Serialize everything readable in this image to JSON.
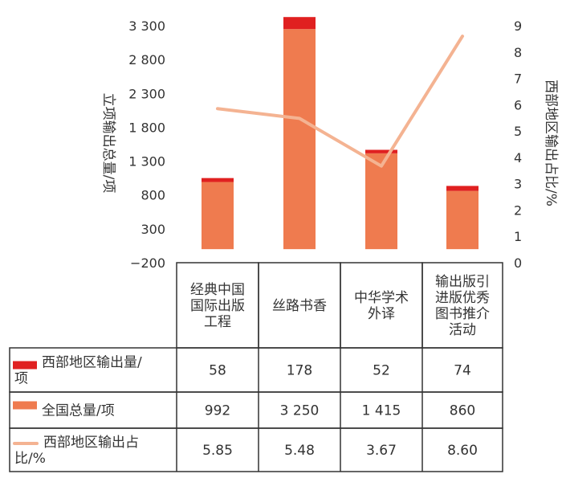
{
  "chart_data": {
    "type": "bar+line",
    "title": "",
    "categories": [
      [
        "经典中国",
        "国际出版",
        "工程"
      ],
      [
        "丝路书香"
      ],
      [
        "中华学术",
        "外译"
      ],
      [
        "输出版引",
        "进版优秀",
        "图书推介",
        "活动"
      ]
    ],
    "y_left": {
      "label": "立项输出总量/项",
      "ticks": [
        "3 300",
        "2 800",
        "2 300",
        "1 800",
        "1 300",
        "800",
        "300",
        "−200"
      ],
      "range": [
        -200,
        3300
      ]
    },
    "y_right": {
      "label": "西部地区输出占比/%",
      "ticks": [
        "9",
        "8",
        "7",
        "6",
        "5",
        "4",
        "3",
        "2",
        "1",
        "0"
      ],
      "range": [
        0,
        9
      ]
    },
    "series": [
      {
        "name": "西部地区输出量/项",
        "type": "bar-stack-top",
        "color": "#e02020",
        "values": [
          58,
          178,
          52,
          74
        ],
        "display": [
          "58",
          "178",
          "52",
          "74"
        ]
      },
      {
        "name": "全国总量/项",
        "type": "bar",
        "color": "#ef7b4f",
        "values": [
          992,
          3250,
          1415,
          860
        ],
        "display": [
          "992",
          "3 250",
          "1 415",
          "860"
        ]
      },
      {
        "name": "西部地区输出占比/%",
        "type": "line",
        "axis": "right",
        "color": "#f4b392",
        "values": [
          5.85,
          5.48,
          3.67,
          8.6
        ],
        "display": [
          "5.85",
          "5.48",
          "3.67",
          "8.60"
        ]
      }
    ],
    "legend": "data-table"
  }
}
